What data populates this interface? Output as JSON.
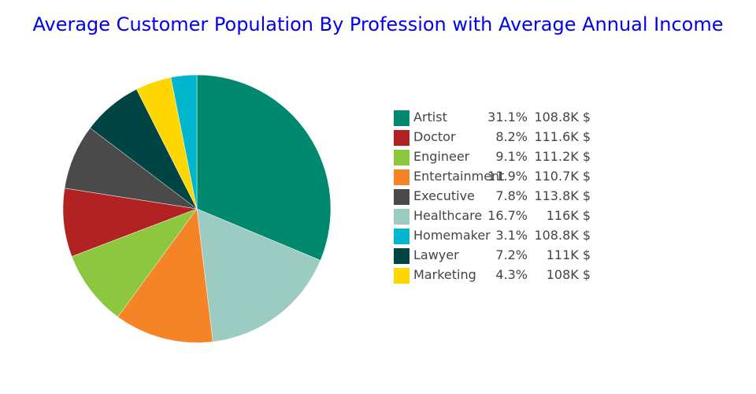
{
  "chart_data": {
    "type": "pie",
    "title": "Average Customer Population By Profession with Average Annual Income",
    "legend_position": "right",
    "slices": [
      {
        "label": "Artist",
        "value": 31.1,
        "percent": "31.1%",
        "income": "108.8K $",
        "color": "#00896e"
      },
      {
        "label": "Doctor",
        "value": 8.2,
        "percent": "8.2%",
        "income": "111.6K $",
        "color": "#b22222"
      },
      {
        "label": "Engineer",
        "value": 9.1,
        "percent": "9.1%",
        "income": "111.2K $",
        "color": "#8dc63f"
      },
      {
        "label": "Entertainment",
        "value": 11.9,
        "percent": "11.9%",
        "income": "110.7K $",
        "color": "#f58427"
      },
      {
        "label": "Executive",
        "value": 7.8,
        "percent": "7.8%",
        "income": "113.8K $",
        "color": "#4a4a4a"
      },
      {
        "label": "Healthcare",
        "value": 16.7,
        "percent": "16.7%",
        "income": "116K $",
        "color": "#9ccbc1"
      },
      {
        "label": "Homemaker",
        "value": 3.1,
        "percent": "3.1%",
        "income": "108.8K $",
        "color": "#00b6cc"
      },
      {
        "label": "Lawyer",
        "value": 7.2,
        "percent": "7.2%",
        "income": "111K $",
        "color": "#004444"
      },
      {
        "label": "Marketing",
        "value": 4.3,
        "percent": "4.3%",
        "income": "108K $",
        "color": "#ffd700"
      }
    ],
    "slice_order_clockwise_from_top": [
      "Artist",
      "Healthcare",
      "Entertainment",
      "Engineer",
      "Doctor",
      "Executive",
      "Lawyer",
      "Marketing",
      "Homemaker"
    ]
  }
}
